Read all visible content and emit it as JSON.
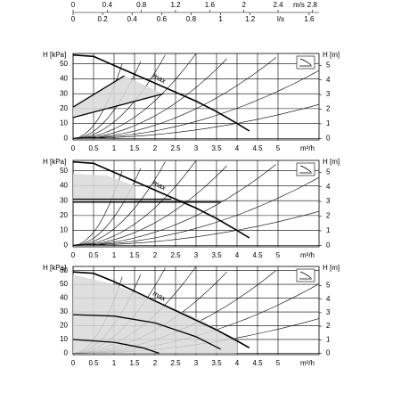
{
  "chart_data": [
    {
      "type": "line",
      "top_axis_unit": "m/s",
      "x2lim": [
        0,
        2.88
      ],
      "x2ticks": [
        0,
        0.4,
        0.8,
        1.2,
        1.6,
        2,
        2.4,
        2.8
      ],
      "top_axis2_unit": "l/s",
      "x3lim": [
        0,
        1.667
      ],
      "x3ticks": [
        0,
        0.2,
        0.4,
        0.6,
        0.8,
        1,
        1.2,
        1.6
      ],
      "x_label": "m³/h",
      "y_label": "H [kPa]",
      "y2_label": "H [m]",
      "curve_label": "max",
      "xlim": [
        0,
        6
      ],
      "xticks": [
        0,
        0.5,
        1,
        1.5,
        2,
        2.5,
        3,
        3.5,
        4,
        4.5,
        5
      ],
      "ylim": [
        -1,
        57
      ],
      "yticks": [
        0,
        10,
        20,
        30,
        40,
        50
      ],
      "y2lim": [
        -0.1,
        5.81
      ],
      "y2ticks": [
        0,
        1,
        2,
        3,
        4,
        5
      ],
      "grid": true,
      "series": [
        {
          "color": "#d9d9d9",
          "closed": true,
          "x": [
            0,
            1.25,
            2.2,
            0
          ],
          "values": [
            21,
            42,
            30,
            14
          ]
        },
        {
          "color": "#000000",
          "x": [
            0,
            0.5,
            1,
            1.5,
            2,
            2.5,
            3,
            3.5,
            4,
            4.3
          ],
          "values": [
            56,
            55,
            49,
            43,
            37,
            31,
            25,
            18,
            10,
            5
          ]
        },
        {
          "color": "#000000",
          "x": [
            0,
            1.25
          ],
          "values": [
            21,
            42
          ]
        },
        {
          "color": "#000000",
          "x": [
            0,
            2.2
          ],
          "values": [
            14,
            30
          ]
        }
      ]
    },
    {
      "type": "line",
      "x_label": "m³/h",
      "y_label": "H [kPa]",
      "y2_label": "H [m]",
      "curve_label": "max",
      "xlim": [
        0,
        6
      ],
      "xticks": [
        0,
        0.5,
        1,
        1.5,
        2,
        2.5,
        3,
        3.5,
        4,
        4.5,
        5
      ],
      "ylim": [
        -1,
        57
      ],
      "yticks": [
        0,
        10,
        20,
        30,
        40,
        50
      ],
      "y2lim": [
        -0.1,
        5.81
      ],
      "y2ticks": [
        0,
        1,
        2,
        3,
        4,
        5
      ],
      "grid": true,
      "series": [
        {
          "color": "#d9d9d9",
          "closed": true,
          "x": [
            0,
            0,
            0.8,
            1.5,
            1.5
          ],
          "values": [
            30,
            48,
            47,
            40,
            30
          ]
        },
        {
          "color": "#000000",
          "x": [
            0,
            0.5,
            1,
            1.5,
            2,
            2.5,
            3,
            3.5,
            4,
            4.3
          ],
          "values": [
            56,
            55,
            49,
            43,
            37,
            31,
            25,
            18,
            10,
            5
          ]
        },
        {
          "color": "#000000",
          "x": [
            0,
            3.6
          ],
          "values": [
            29,
            29
          ]
        },
        {
          "color": "#000000",
          "x": [
            0,
            2.4
          ],
          "values": [
            31,
            31
          ]
        }
      ]
    },
    {
      "type": "line",
      "x_label": "m³/h",
      "y_label": "H [kPa]",
      "y2_label": "H [m]",
      "curve_label": "max",
      "xlim": [
        0,
        6
      ],
      "xticks": [
        0,
        0.5,
        1,
        1.5,
        2,
        2.5,
        3,
        3.5,
        4,
        4.5,
        5
      ],
      "ylim": [
        -1,
        63
      ],
      "yticks": [
        0,
        10,
        20,
        30,
        40,
        50,
        60
      ],
      "y2lim": [
        -0.1,
        6.42
      ],
      "y2ticks": [
        0,
        1,
        2,
        3,
        4,
        5
      ],
      "grid": true,
      "series": [
        {
          "color": "#d9d9d9",
          "closed": true,
          "x": [
            0,
            0,
            1,
            2,
            3,
            4,
            4
          ],
          "values": [
            0,
            57,
            50,
            38,
            26,
            10,
            0
          ]
        },
        {
          "color": "#000000",
          "x": [
            0,
            0.5,
            1,
            1.5,
            2,
            2.5,
            3,
            3.5,
            4,
            4.3
          ],
          "values": [
            59,
            58,
            52,
            45,
            38,
            31,
            24,
            17,
            9,
            4
          ]
        },
        {
          "color": "#000000",
          "x": [
            0,
            1,
            2,
            3,
            3.6
          ],
          "values": [
            28,
            27,
            22,
            12,
            3
          ]
        },
        {
          "color": "#000000",
          "x": [
            0,
            1,
            1.7,
            2.1
          ],
          "values": [
            10,
            8,
            4,
            0
          ]
        }
      ]
    }
  ]
}
